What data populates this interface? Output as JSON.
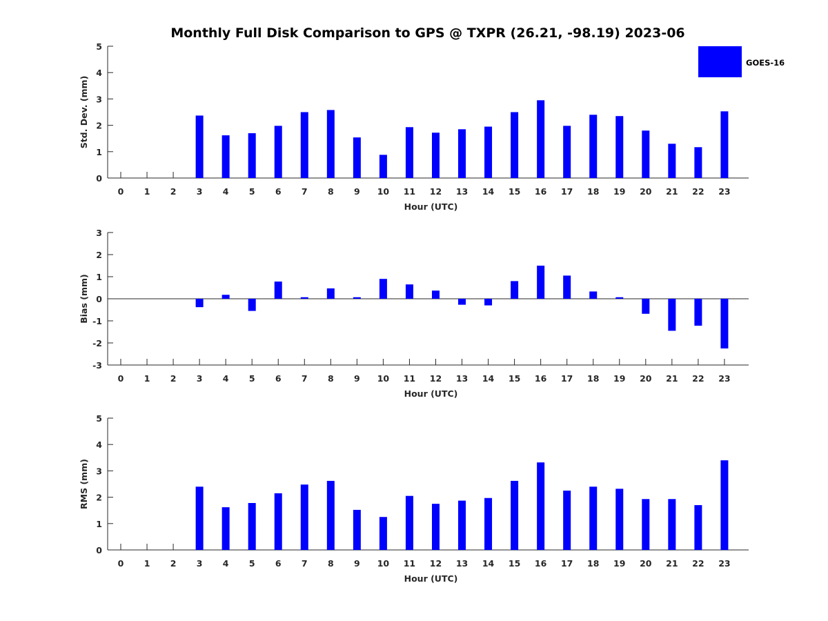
{
  "title": "Monthly Full Disk Comparison to GPS @ TXPR (26.21, -98.19) 2023-06",
  "legend": {
    "label": "GOES-16",
    "color": "#0000ff",
    "placement": "top-right"
  },
  "chart_data": [
    {
      "type": "bar",
      "name": "std-dev",
      "xlabel": "Hour (UTC)",
      "ylabel": "Std. Dev. (mm)",
      "ylim": [
        0,
        5
      ],
      "yticks": [
        0,
        1,
        2,
        3,
        4,
        5
      ],
      "categories": [
        "0",
        "1",
        "2",
        "3",
        "4",
        "5",
        "6",
        "7",
        "8",
        "9",
        "10",
        "11",
        "12",
        "13",
        "14",
        "15",
        "16",
        "17",
        "18",
        "19",
        "20",
        "21",
        "22",
        "23"
      ],
      "series": [
        {
          "name": "GOES-16",
          "values": [
            null,
            null,
            null,
            2.37,
            1.62,
            1.7,
            1.98,
            2.5,
            2.58,
            1.54,
            0.88,
            1.93,
            1.72,
            1.85,
            1.95,
            2.5,
            2.95,
            1.98,
            2.4,
            2.35,
            1.8,
            1.3,
            1.17,
            2.53
          ]
        }
      ]
    },
    {
      "type": "bar",
      "name": "bias",
      "xlabel": "Hour (UTC)",
      "ylabel": "Bias (mm)",
      "ylim": [
        -3,
        3
      ],
      "yticks": [
        -3,
        -2,
        -1,
        0,
        1,
        2,
        3
      ],
      "categories": [
        "0",
        "1",
        "2",
        "3",
        "4",
        "5",
        "6",
        "7",
        "8",
        "9",
        "10",
        "11",
        "12",
        "13",
        "14",
        "15",
        "16",
        "17",
        "18",
        "19",
        "20",
        "21",
        "22",
        "23"
      ],
      "series": [
        {
          "name": "GOES-16",
          "values": [
            null,
            null,
            null,
            -0.38,
            0.18,
            -0.55,
            0.78,
            0.07,
            0.47,
            0.07,
            0.9,
            0.65,
            0.37,
            -0.27,
            -0.3,
            0.8,
            1.5,
            1.05,
            0.33,
            0.07,
            -0.68,
            -1.45,
            -1.22,
            -2.25
          ]
        }
      ]
    },
    {
      "type": "bar",
      "name": "rms",
      "xlabel": "Hour (UTC)",
      "ylabel": "RMS (mm)",
      "ylim": [
        0,
        5
      ],
      "yticks": [
        0,
        1,
        2,
        3,
        4,
        5
      ],
      "categories": [
        "0",
        "1",
        "2",
        "3",
        "4",
        "5",
        "6",
        "7",
        "8",
        "9",
        "10",
        "11",
        "12",
        "13",
        "14",
        "15",
        "16",
        "17",
        "18",
        "19",
        "20",
        "21",
        "22",
        "23"
      ],
      "series": [
        {
          "name": "GOES-16",
          "values": [
            null,
            null,
            null,
            2.4,
            1.62,
            1.78,
            2.15,
            2.48,
            2.62,
            1.52,
            1.25,
            2.05,
            1.75,
            1.87,
            1.97,
            2.62,
            3.32,
            2.25,
            2.4,
            2.32,
            1.93,
            1.93,
            1.7,
            3.4
          ]
        }
      ]
    }
  ]
}
